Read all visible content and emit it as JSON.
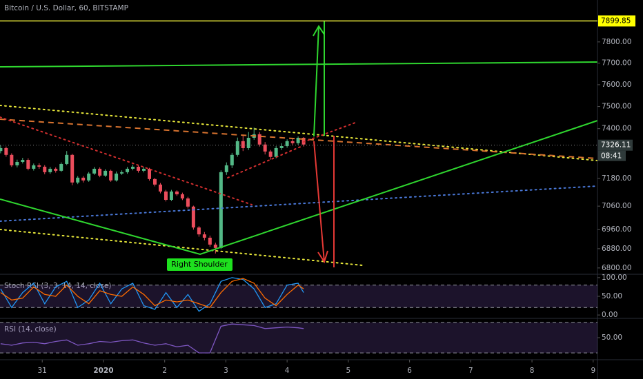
{
  "chart_data": [
    {
      "type": "candlestick",
      "title": "Bitcoin / U.S. Dollar, 60, BITSTAMP",
      "log": true,
      "x": [
        -0.68,
        -0.59,
        -0.5,
        -0.41,
        -0.32,
        -0.23,
        -0.14,
        -0.05,
        0.04,
        0.13,
        0.22,
        0.31,
        0.4,
        0.49,
        0.58,
        0.67,
        0.76,
        0.85,
        0.94,
        1.03,
        1.12,
        1.21,
        1.3,
        1.39,
        1.48,
        1.57,
        1.66,
        1.75,
        1.84,
        1.93,
        2.02,
        2.11,
        2.2,
        2.29,
        2.38,
        2.47,
        2.56,
        2.65,
        2.74,
        2.83,
        2.92,
        3.01,
        3.1,
        3.19,
        3.28,
        3.37,
        3.46,
        3.55,
        3.64,
        3.73,
        3.82,
        3.91,
        4.0,
        4.09,
        4.18,
        4.27
      ],
      "open": [
        7300,
        7313,
        7283,
        7237,
        7252,
        7261,
        7222,
        7237,
        7231,
        7207,
        7222,
        7213,
        7243,
        7283,
        7162,
        7183,
        7171,
        7201,
        7222,
        7192,
        7213,
        7171,
        7201,
        7207,
        7222,
        7231,
        7213,
        7222,
        7177,
        7153,
        7123,
        7087,
        7123,
        7111,
        7093,
        7058,
        6969,
        6940,
        6926,
        6897,
        6883,
        7207,
        7237,
        7283,
        7344,
        7313,
        7359,
        7375,
        7329,
        7298,
        7274,
        7313,
        7322,
        7344,
        7335,
        7359
      ],
      "high": [
        7325,
        7320,
        7290,
        7262,
        7270,
        7268,
        7245,
        7246,
        7238,
        7230,
        7228,
        7250,
        7300,
        7288,
        7190,
        7190,
        7208,
        7230,
        7228,
        7220,
        7218,
        7210,
        7215,
        7230,
        7240,
        7236,
        7230,
        7226,
        7182,
        7160,
        7130,
        7130,
        7128,
        7118,
        7100,
        7062,
        6975,
        6950,
        6935,
        6905,
        7215,
        7250,
        7292,
        7360,
        7370,
        7385,
        7405,
        7385,
        7340,
        7305,
        7322,
        7335,
        7352,
        7355,
        7365,
        7362
      ],
      "low": [
        7290,
        7275,
        7230,
        7228,
        7245,
        7215,
        7214,
        7222,
        7198,
        7200,
        7205,
        7208,
        7238,
        7150,
        7155,
        7162,
        7165,
        7195,
        7185,
        7186,
        7165,
        7166,
        7195,
        7200,
        7215,
        7205,
        7206,
        7170,
        7145,
        7115,
        7080,
        7082,
        7104,
        7086,
        7050,
        6960,
        6930,
        6915,
        6888,
        6860,
        6878,
        7195,
        7225,
        7275,
        7300,
        7305,
        7350,
        7320,
        7285,
        7262,
        7268,
        7305,
        7315,
        7325,
        7328,
        7320
      ],
      "close": [
        7313,
        7283,
        7237,
        7252,
        7261,
        7222,
        7237,
        7231,
        7207,
        7222,
        7213,
        7243,
        7283,
        7162,
        7183,
        7171,
        7201,
        7222,
        7192,
        7213,
        7171,
        7201,
        7207,
        7222,
        7231,
        7213,
        7222,
        7177,
        7153,
        7123,
        7087,
        7123,
        7111,
        7093,
        7058,
        6969,
        6940,
        6926,
        6897,
        6883,
        7207,
        7237,
        7283,
        7344,
        7313,
        7359,
        7375,
        7329,
        7298,
        7274,
        7313,
        7322,
        7344,
        7335,
        7359,
        7329
      ],
      "up_color": "#53b987",
      "down_color": "#eb4d5c",
      "xlim": [
        -0.69,
        9.07
      ],
      "xticks": [
        {
          "value": 0,
          "label": "31"
        },
        {
          "value": 1,
          "label": "2020"
        },
        2,
        3,
        4,
        5,
        6,
        7,
        8,
        9
      ],
      "ylim": [
        6774,
        8001
      ],
      "yticks": [
        {
          "value": 7800,
          "label": "7800.00"
        },
        {
          "value": 7700,
          "label": "7700.00"
        },
        {
          "value": 7600,
          "label": "7600.00"
        },
        {
          "value": 7500,
          "label": "7500.00"
        },
        {
          "value": 7400,
          "label": "7400.00"
        },
        {
          "value": 7180,
          "label": "7180.00"
        },
        {
          "value": 7060,
          "label": "7060.00"
        },
        {
          "value": 6960,
          "label": "6960.00"
        },
        {
          "value": 6880,
          "label": "6880.00"
        },
        {
          "value": 6800,
          "label": "6800.00"
        }
      ],
      "price_line": 7899.85,
      "last_price": 7326.11,
      "countdown": "08:41",
      "annotation": "Right Shoulder"
    },
    {
      "type": "line",
      "title": "Stoch RSI (3, 3, 14, 14, close)",
      "x": [
        -0.68,
        -0.5,
        -0.32,
        -0.14,
        0.04,
        0.22,
        0.4,
        0.58,
        0.76,
        0.94,
        1.12,
        1.3,
        1.48,
        1.66,
        1.84,
        2.02,
        2.2,
        2.38,
        2.56,
        2.74,
        2.92,
        3.1,
        3.28,
        3.46,
        3.64,
        3.82,
        4.0,
        4.18,
        4.27
      ],
      "series": [
        {
          "color": "#2196f3",
          "values": [
            70,
            20,
            60,
            85,
            30,
            75,
            90,
            20,
            40,
            85,
            30,
            70,
            85,
            25,
            15,
            60,
            20,
            55,
            10,
            30,
            90,
            100,
            95,
            70,
            20,
            30,
            80,
            85,
            60
          ]
        },
        {
          "color": "#ff6d00",
          "values": [
            60,
            40,
            45,
            75,
            55,
            50,
            80,
            50,
            30,
            65,
            55,
            50,
            75,
            55,
            25,
            40,
            35,
            40,
            30,
            20,
            60,
            90,
            98,
            85,
            45,
            25,
            55,
            80,
            70
          ]
        }
      ],
      "xlim": [
        -0.69,
        9.07
      ],
      "ylim": [
        -9,
        109
      ],
      "yticks": [
        {
          "value": 100,
          "label": "100.00"
        },
        {
          "value": 50,
          "label": "50.00"
        },
        {
          "value": 0,
          "label": "0.00"
        }
      ],
      "bands": [
        20,
        80
      ]
    },
    {
      "type": "line",
      "title": "RSI (14, close)",
      "x": [
        -0.68,
        -0.5,
        -0.32,
        -0.14,
        0.04,
        0.22,
        0.4,
        0.58,
        0.76,
        0.94,
        1.12,
        1.3,
        1.48,
        1.66,
        1.84,
        2.02,
        2.2,
        2.38,
        2.56,
        2.74,
        2.92,
        3.1,
        3.28,
        3.46,
        3.64,
        3.82,
        4.0,
        4.18,
        4.27
      ],
      "series": [
        {
          "color": "#7e57c2",
          "values": [
            42,
            40,
            43,
            44,
            42,
            45,
            47,
            40,
            42,
            45,
            44,
            46,
            47,
            43,
            40,
            42,
            38,
            40,
            30,
            30,
            65,
            68,
            67,
            66,
            62,
            63,
            64,
            63,
            62
          ]
        }
      ],
      "xlim": [
        -0.69,
        9.07
      ],
      "ylim": [
        21,
        74.5
      ],
      "yticks": [
        {
          "value": 50,
          "label": "50.00"
        }
      ],
      "bands": [
        30,
        70
      ]
    }
  ]
}
